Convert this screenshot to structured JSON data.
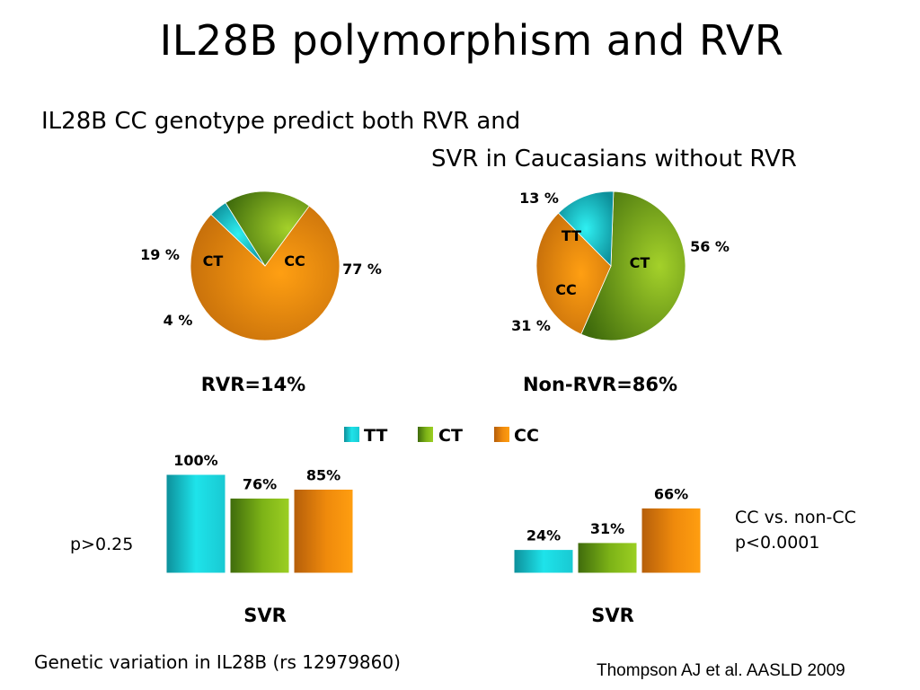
{
  "title": "IL28B polymorphism and RVR",
  "subtitle_line1": "IL28B CC genotype predict both RVR and",
  "subtitle_line2": "SVR in Caucasians without  RVR",
  "legend": [
    {
      "label": "TT",
      "color": "#1fd6dc"
    },
    {
      "label": "CT",
      "color": "#6aa812"
    },
    {
      "label": "CC",
      "color": "#f39100"
    }
  ],
  "chart_data": [
    {
      "type": "pie",
      "caption": "RVR=14%",
      "slices": [
        {
          "label": "CC",
          "value": 77,
          "value_label": "77 %",
          "color": "cc"
        },
        {
          "label": "TT",
          "value": 4,
          "value_label": "4 %",
          "color": "tt"
        },
        {
          "label": "CT",
          "value": 19,
          "value_label": "19 %",
          "color": "ct"
        }
      ]
    },
    {
      "type": "pie",
      "caption": "Non-RVR=86%",
      "slices": [
        {
          "label": "CT",
          "value": 56,
          "value_label": "56 %",
          "color": "ct"
        },
        {
          "label": "CC",
          "value": 31,
          "value_label": "31 %",
          "color": "cc"
        },
        {
          "label": "TT",
          "value": 13,
          "value_label": "13 %",
          "color": "tt"
        }
      ]
    },
    {
      "type": "bar",
      "caption": "SVR",
      "categories": [
        "TT",
        "CT",
        "CC"
      ],
      "values": [
        100,
        76,
        85
      ],
      "value_labels": [
        "100%",
        "76%",
        "85%"
      ],
      "ylim": [
        0,
        100
      ],
      "annotation": "p>0.25"
    },
    {
      "type": "bar",
      "caption": "SVR",
      "categories": [
        "TT",
        "CT",
        "CC"
      ],
      "values": [
        24,
        31,
        66
      ],
      "value_labels": [
        "24%",
        "31%",
        "66%"
      ],
      "ylim": [
        0,
        100
      ],
      "annotation_line1": "CC vs. non-CC",
      "annotation_line2": "p<0.0001"
    }
  ],
  "footer_left": "Genetic variation in IL28B (rs 12979860)",
  "footer_right": "Thompson AJ et al.  AASLD 2009"
}
